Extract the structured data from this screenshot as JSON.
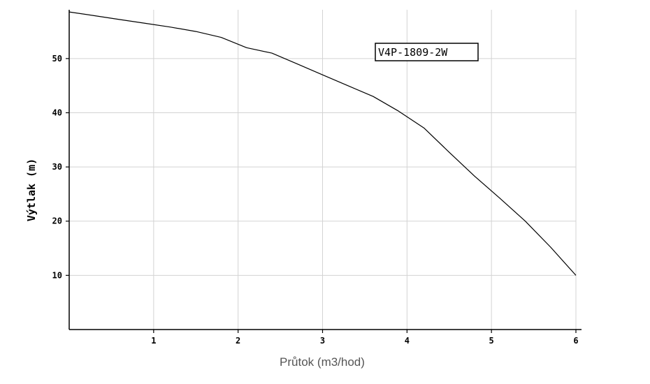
{
  "chart_data": {
    "type": "line",
    "xlabel": "Průtok (m3/hod)",
    "ylabel": "Výtlak (m)",
    "xlim": [
      0,
      6
    ],
    "ylim": [
      0,
      59
    ],
    "x_ticks": [
      1,
      2,
      3,
      4,
      5,
      6
    ],
    "y_ticks": [
      10,
      20,
      30,
      40,
      50
    ],
    "grid": true,
    "legend_position": "top-right",
    "series": [
      {
        "name": "V4P-1809-2W",
        "color": "#000000",
        "x": [
          0,
          0.3,
          0.6,
          0.9,
          1.2,
          1.5,
          1.8,
          2.1,
          2.4,
          2.7,
          3.0,
          3.3,
          3.6,
          3.9,
          4.2,
          4.5,
          4.8,
          5.1,
          5.4,
          5.7,
          6.0
        ],
        "y": [
          58.6,
          57.9,
          57.2,
          56.5,
          55.8,
          55.0,
          53.9,
          52.0,
          51.0,
          49.0,
          47.0,
          45.0,
          43.0,
          40.3,
          37.2,
          32.7,
          28.3,
          24.2,
          20.0,
          15.2,
          10.0
        ]
      }
    ]
  }
}
